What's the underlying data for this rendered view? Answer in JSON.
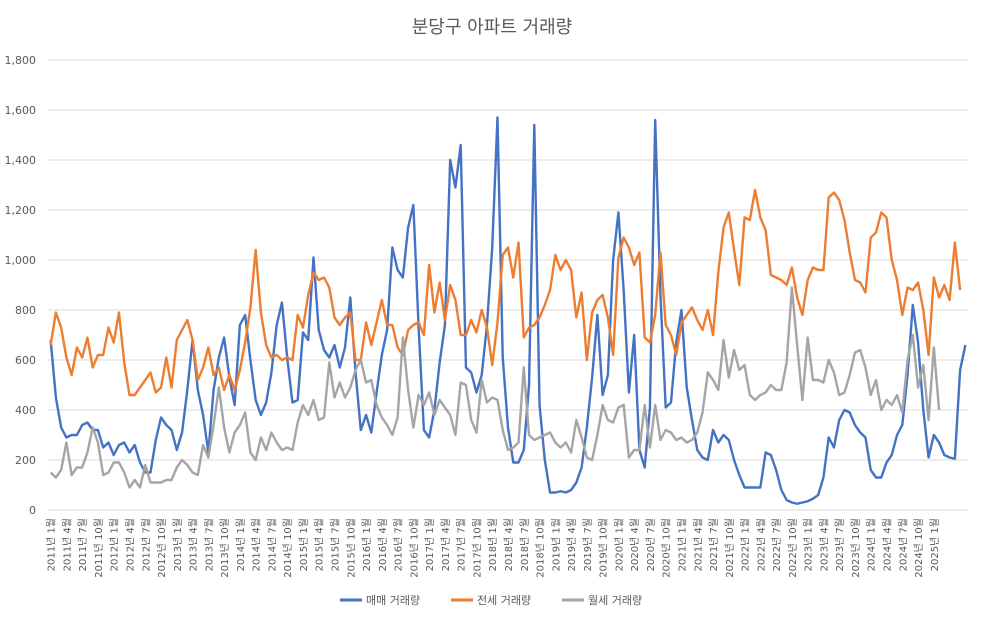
{
  "chart_data": {
    "type": "line",
    "title": "분당구 아파트 거래량",
    "ylim": [
      0,
      1800
    ],
    "y_ticks": [
      "0",
      "200",
      "400",
      "600",
      "800",
      "1,000",
      "1,200",
      "1,400",
      "1,600",
      "1,800"
    ],
    "y_tick_values": [
      0,
      200,
      400,
      600,
      800,
      1000,
      1200,
      1400,
      1600,
      1800
    ],
    "grid": true,
    "legend_position": "bottom",
    "x_tick_labels": [
      "2011년 1월",
      "2011년 4월",
      "2011년 7월",
      "2011년 10월",
      "2012년 1월",
      "2012년 4월",
      "2012년 7월",
      "2012년 10월",
      "2013년 1월",
      "2013년 4월",
      "2013년 7월",
      "2013년 10월",
      "2014년 1월",
      "2014년 4월",
      "2014년 7월",
      "2014년 10월",
      "2015년 1월",
      "2015년 4월",
      "2015년 7월",
      "2015년 10월",
      "2016년 1월",
      "2016년 4월",
      "2016년 7월",
      "2016년 10월",
      "2017년 1월",
      "2017년 4월",
      "2017년 7월",
      "2017년 10월",
      "2018년 1월",
      "2018년 4월",
      "2018년 7월",
      "2018년 10월",
      "2019년 1월",
      "2019년 4월",
      "2019년 7월",
      "2019년 10월",
      "2020년 1월",
      "2020년 4월",
      "2020년 7월",
      "2020년 10월",
      "2021년 1월",
      "2021년 4월",
      "2021년 7월",
      "2021년 10월",
      "2022년 1월",
      "2022년 4월",
      "2022년 7월",
      "2022년 10월",
      "2023년 1월",
      "2023년 4월",
      "2023년 7월",
      "2023년 10월",
      "2024년 1월",
      "2024년 4월",
      "2024년 7월",
      "2024년 10월",
      "2025년 1월"
    ],
    "series": [
      {
        "name": "매매 거래량",
        "color": "#4472C4",
        "values": [
          680,
          450,
          330,
          290,
          300,
          300,
          340,
          350,
          320,
          320,
          250,
          270,
          220,
          260,
          270,
          230,
          260,
          190,
          150,
          150,
          280,
          370,
          340,
          320,
          240,
          310,
          480,
          680,
          480,
          380,
          230,
          480,
          610,
          690,
          530,
          420,
          740,
          780,
          600,
          440,
          380,
          430,
          550,
          740,
          830,
          610,
          430,
          440,
          710,
          680,
          1010,
          720,
          640,
          610,
          660,
          570,
          650,
          850,
          550,
          320,
          380,
          310,
          470,
          620,
          720,
          1050,
          960,
          930,
          1130,
          1220,
          730,
          320,
          290,
          400,
          590,
          740,
          1400,
          1290,
          1460,
          570,
          550,
          470,
          540,
          740,
          1050,
          1570,
          610,
          330,
          190,
          190,
          240,
          500,
          1540,
          420,
          200,
          70,
          70,
          75,
          70,
          80,
          110,
          170,
          330,
          530,
          780,
          460,
          540,
          1000,
          1190,
          880,
          470,
          700,
          240,
          170,
          410,
          1560,
          860,
          410,
          430,
          670,
          800,
          490,
          360,
          240,
          210,
          200,
          320,
          270,
          300,
          280,
          200,
          140,
          90,
          90,
          90,
          90,
          230,
          220,
          160,
          80,
          40,
          30,
          25,
          30,
          35,
          45,
          60,
          130,
          290,
          250,
          360,
          400,
          390,
          340,
          310,
          290,
          160,
          130,
          130,
          190,
          220,
          300,
          340,
          540,
          820,
          670,
          400,
          210,
          300,
          270,
          220,
          210,
          205,
          560,
          660
        ]
      },
      {
        "name": "전세 거래량",
        "color": "#ED7D31",
        "values": [
          660,
          790,
          730,
          610,
          540,
          650,
          610,
          690,
          570,
          620,
          620,
          730,
          670,
          790,
          590,
          460,
          460,
          490,
          520,
          550,
          470,
          490,
          610,
          490,
          680,
          720,
          760,
          680,
          520,
          570,
          650,
          540,
          570,
          480,
          540,
          480,
          560,
          670,
          810,
          1040,
          790,
          660,
          610,
          620,
          600,
          610,
          600,
          780,
          730,
          860,
          950,
          920,
          930,
          890,
          770,
          740,
          770,
          790,
          600,
          600,
          750,
          660,
          750,
          840,
          740,
          740,
          650,
          620,
          720,
          740,
          750,
          700,
          980,
          790,
          910,
          760,
          900,
          840,
          700,
          700,
          760,
          710,
          800,
          730,
          580,
          750,
          1020,
          1050,
          930,
          1070,
          690,
          730,
          740,
          770,
          820,
          880,
          1020,
          960,
          1000,
          960,
          770,
          870,
          600,
          790,
          840,
          860,
          770,
          620,
          1010,
          1090,
          1050,
          980,
          1030,
          690,
          670,
          780,
          1030,
          740,
          700,
          620,
          750,
          780,
          810,
          760,
          720,
          800,
          700,
          950,
          1130,
          1190,
          1040,
          900,
          1170,
          1160,
          1280,
          1170,
          1120,
          940,
          930,
          920,
          900,
          970,
          850,
          780,
          920,
          970,
          960,
          960,
          1250,
          1270,
          1240,
          1160,
          1030,
          920,
          910,
          870,
          1090,
          1110,
          1190,
          1170,
          1000,
          920,
          780,
          890,
          880,
          910,
          800,
          620,
          930,
          850,
          900,
          840,
          1070,
          880
        ]
      },
      {
        "name": "월세 거래량",
        "color": "#A5A5A5",
        "values": [
          150,
          130,
          160,
          270,
          140,
          170,
          170,
          230,
          330,
          270,
          140,
          150,
          190,
          190,
          150,
          90,
          120,
          90,
          180,
          110,
          110,
          110,
          120,
          120,
          170,
          200,
          180,
          150,
          140,
          260,
          210,
          340,
          490,
          330,
          230,
          310,
          340,
          390,
          230,
          200,
          290,
          240,
          310,
          270,
          240,
          250,
          240,
          350,
          420,
          380,
          440,
          360,
          370,
          590,
          450,
          510,
          450,
          490,
          560,
          600,
          510,
          520,
          420,
          370,
          340,
          300,
          370,
          690,
          480,
          330,
          460,
          420,
          470,
          380,
          440,
          410,
          380,
          300,
          510,
          500,
          360,
          310,
          520,
          430,
          450,
          440,
          320,
          240,
          250,
          270,
          570,
          300,
          280,
          290,
          300,
          310,
          270,
          250,
          270,
          230,
          360,
          290,
          210,
          200,
          300,
          420,
          360,
          350,
          410,
          420,
          210,
          240,
          240,
          420,
          250,
          420,
          280,
          320,
          310,
          280,
          290,
          270,
          280,
          310,
          390,
          550,
          520,
          480,
          680,
          530,
          640,
          560,
          580,
          460,
          440,
          460,
          470,
          500,
          480,
          480,
          590,
          890,
          660,
          440,
          690,
          520,
          520,
          510,
          600,
          550,
          460,
          470,
          540,
          630,
          640,
          570,
          460,
          520,
          400,
          440,
          420,
          460,
          390,
          600,
          700,
          490,
          580,
          360,
          650,
          400
        ]
      }
    ]
  }
}
